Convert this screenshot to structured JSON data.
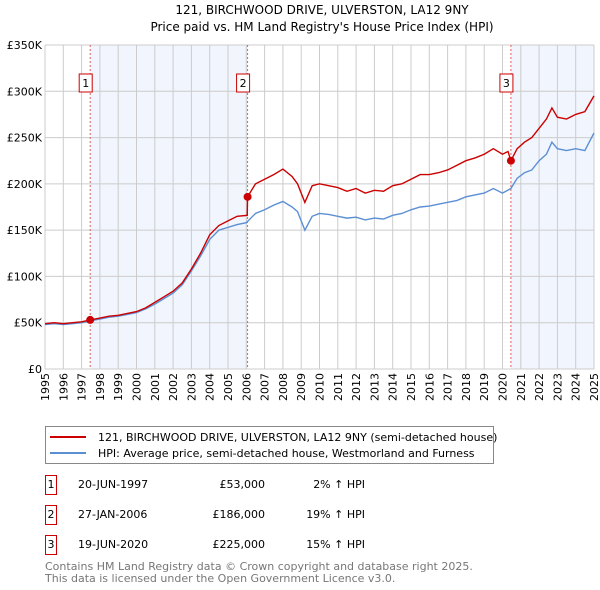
{
  "chart_data": {
    "type": "line",
    "title": "121, BIRCHWOOD DRIVE, ULVERSTON, LA12 9NY",
    "subtitle": "Price paid vs. HM Land Registry's House Price Index (HPI)",
    "xlim": [
      1995,
      2025
    ],
    "ylim": [
      0,
      350000
    ],
    "yticks": [
      0,
      50000,
      100000,
      150000,
      200000,
      250000,
      300000,
      350000
    ],
    "ytick_labels": [
      "£0",
      "£50K",
      "£100K",
      "£150K",
      "£200K",
      "£250K",
      "£300K",
      "£350K"
    ],
    "xticks": [
      1995,
      1996,
      1997,
      1998,
      1999,
      2000,
      2001,
      2002,
      2003,
      2004,
      2005,
      2006,
      2007,
      2008,
      2009,
      2010,
      2011,
      2012,
      2013,
      2014,
      2015,
      2016,
      2017,
      2018,
      2019,
      2020,
      2021,
      2022,
      2023,
      2024,
      2025
    ],
    "grid": true,
    "series": [
      {
        "name": "121, BIRCHWOOD DRIVE, ULVERSTON, LA12 9NY (semi-detached house)",
        "color": "#cc0000",
        "x": [
          1995,
          1995.5,
          1996,
          1996.5,
          1997,
          1997.47,
          1998,
          1998.5,
          1999,
          1999.5,
          2000,
          2000.5,
          2001,
          2001.5,
          2002,
          2002.5,
          2003,
          2003.5,
          2004,
          2004.5,
          2005,
          2005.5,
          2006.05,
          2006.07,
          2006.5,
          2007,
          2007.5,
          2008,
          2008.5,
          2008.8,
          2009.2,
          2009.6,
          2010,
          2010.5,
          2011,
          2011.5,
          2012,
          2012.5,
          2013,
          2013.5,
          2014,
          2014.5,
          2015,
          2015.5,
          2016,
          2016.5,
          2017,
          2017.5,
          2018,
          2018.5,
          2019,
          2019.5,
          2020,
          2020.3,
          2020.46,
          2020.8,
          2021.2,
          2021.6,
          2022,
          2022.4,
          2022.7,
          2023,
          2023.5,
          2024,
          2024.5,
          2025
        ],
        "y": [
          49000,
          50000,
          49000,
          50000,
          51000,
          53000,
          55000,
          57000,
          58000,
          60000,
          62000,
          66000,
          72000,
          78000,
          84000,
          93000,
          108000,
          125000,
          145000,
          155000,
          160000,
          165000,
          166000,
          186000,
          200000,
          205000,
          210000,
          216000,
          208000,
          200000,
          180000,
          198000,
          200000,
          198000,
          196000,
          192000,
          195000,
          190000,
          193000,
          192000,
          198000,
          200000,
          205000,
          210000,
          210000,
          212000,
          215000,
          220000,
          225000,
          228000,
          232000,
          238000,
          232000,
          235000,
          225000,
          238000,
          245000,
          250000,
          260000,
          270000,
          282000,
          272000,
          270000,
          275000,
          278000,
          295000
        ]
      },
      {
        "name": "HPI: Average price, semi-detached house, Westmorland and Furness",
        "color": "#5b8fd4",
        "x": [
          1995,
          1995.5,
          1996,
          1996.5,
          1997,
          1997.47,
          1998,
          1998.5,
          1999,
          1999.5,
          2000,
          2000.5,
          2001,
          2001.5,
          2002,
          2002.5,
          2003,
          2003.5,
          2004,
          2004.5,
          2005,
          2005.5,
          2006,
          2006.5,
          2007,
          2007.5,
          2008,
          2008.5,
          2008.8,
          2009.2,
          2009.6,
          2010,
          2010.5,
          2011,
          2011.5,
          2012,
          2012.5,
          2013,
          2013.5,
          2014,
          2014.5,
          2015,
          2015.5,
          2016,
          2016.5,
          2017,
          2017.5,
          2018,
          2018.5,
          2019,
          2019.5,
          2020,
          2020.46,
          2020.8,
          2021.2,
          2021.6,
          2022,
          2022.4,
          2022.7,
          2023,
          2023.5,
          2024,
          2024.5,
          2025
        ],
        "y": [
          48000,
          49000,
          48000,
          49000,
          50000,
          52000,
          54000,
          56000,
          57000,
          59000,
          61000,
          65000,
          70000,
          76000,
          82000,
          91000,
          106000,
          122000,
          140000,
          150000,
          153000,
          156000,
          158000,
          168000,
          172000,
          177000,
          181000,
          175000,
          170000,
          150000,
          165000,
          168000,
          167000,
          165000,
          163000,
          164000,
          161000,
          163000,
          162000,
          166000,
          168000,
          172000,
          175000,
          176000,
          178000,
          180000,
          182000,
          186000,
          188000,
          190000,
          195000,
          190000,
          195000,
          206000,
          212000,
          215000,
          225000,
          232000,
          245000,
          238000,
          236000,
          238000,
          236000,
          255000
        ]
      }
    ],
    "sales": [
      {
        "n": "1",
        "x": 1997.47,
        "y": 53000,
        "date": "20-JUN-1997",
        "price": "£53,000",
        "hpi": "2% ↑ HPI"
      },
      {
        "n": "2",
        "x": 2006.07,
        "y": 186000,
        "date": "27-JAN-2006",
        "price": "£186,000",
        "hpi": "19% ↑ HPI"
      },
      {
        "n": "3",
        "x": 2020.46,
        "y": 225000,
        "date": "19-JUN-2020",
        "price": "£225,000",
        "hpi": "15% ↑ HPI"
      }
    ]
  },
  "legend": {
    "red": "121, BIRCHWOOD DRIVE, ULVERSTON, LA12 9NY (semi-detached house)",
    "blue": "HPI: Average price, semi-detached house, Westmorland and Furness"
  },
  "footer": {
    "line1": "Contains HM Land Registry data © Crown copyright and database right 2025.",
    "line2": "This data is licensed under the Open Government Licence v3.0."
  }
}
